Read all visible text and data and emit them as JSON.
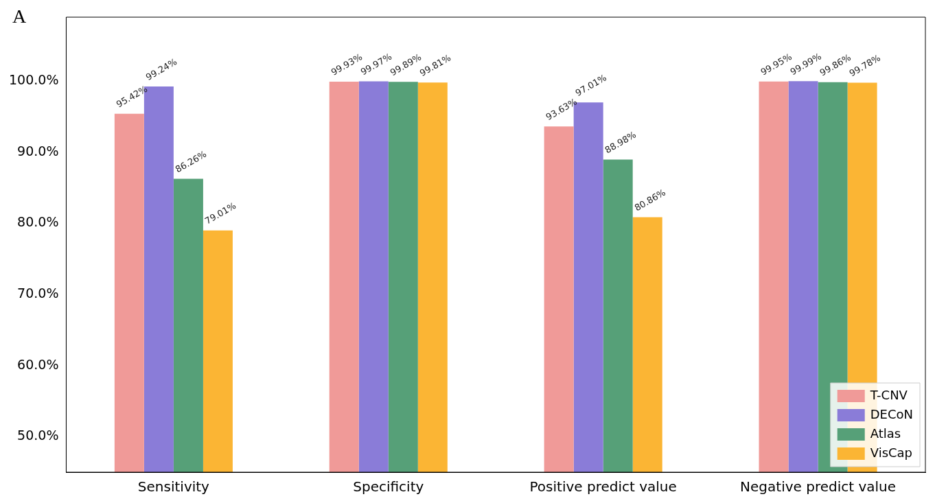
{
  "chart_data": {
    "type": "bar",
    "title": "A",
    "categories": [
      "Sensitivity",
      "Specificity",
      "Positive predict value",
      "Negative predict value"
    ],
    "series": [
      {
        "name": "T-CNV",
        "color": "#f09a98",
        "values": [
          95.42,
          99.93,
          93.63,
          99.95
        ],
        "value_labels": [
          "95.42%",
          "99.93%",
          "93.63%",
          "99.95%"
        ]
      },
      {
        "name": "DECoN",
        "color": "#8a7cd8",
        "values": [
          99.24,
          99.97,
          97.01,
          99.99
        ],
        "value_labels": [
          "99.24%",
          "99.97%",
          "97.01%",
          "99.99%"
        ]
      },
      {
        "name": "Atlas",
        "color": "#56a078",
        "values": [
          86.26,
          99.89,
          88.98,
          99.86
        ],
        "value_labels": [
          "86.26%",
          "99.89%",
          "88.98%",
          "99.86%"
        ]
      },
      {
        "name": "VisCap",
        "color": "#fbb534",
        "values": [
          79.01,
          99.81,
          80.86,
          99.78
        ],
        "value_labels": [
          "79.01%",
          "99.81%",
          "80.86%",
          "99.78%"
        ]
      }
    ],
    "ylim": [
      45,
      109
    ],
    "yticks": [
      {
        "value": 50,
        "label": "50.0%"
      },
      {
        "value": 60,
        "label": "60.0%"
      },
      {
        "value": 70,
        "label": "70.0%"
      },
      {
        "value": 80,
        "label": "80.0%"
      },
      {
        "value": 90,
        "label": "90.0%"
      },
      {
        "value": 100,
        "label": "100.0%"
      }
    ],
    "grid": false,
    "legend": "bottom right"
  }
}
